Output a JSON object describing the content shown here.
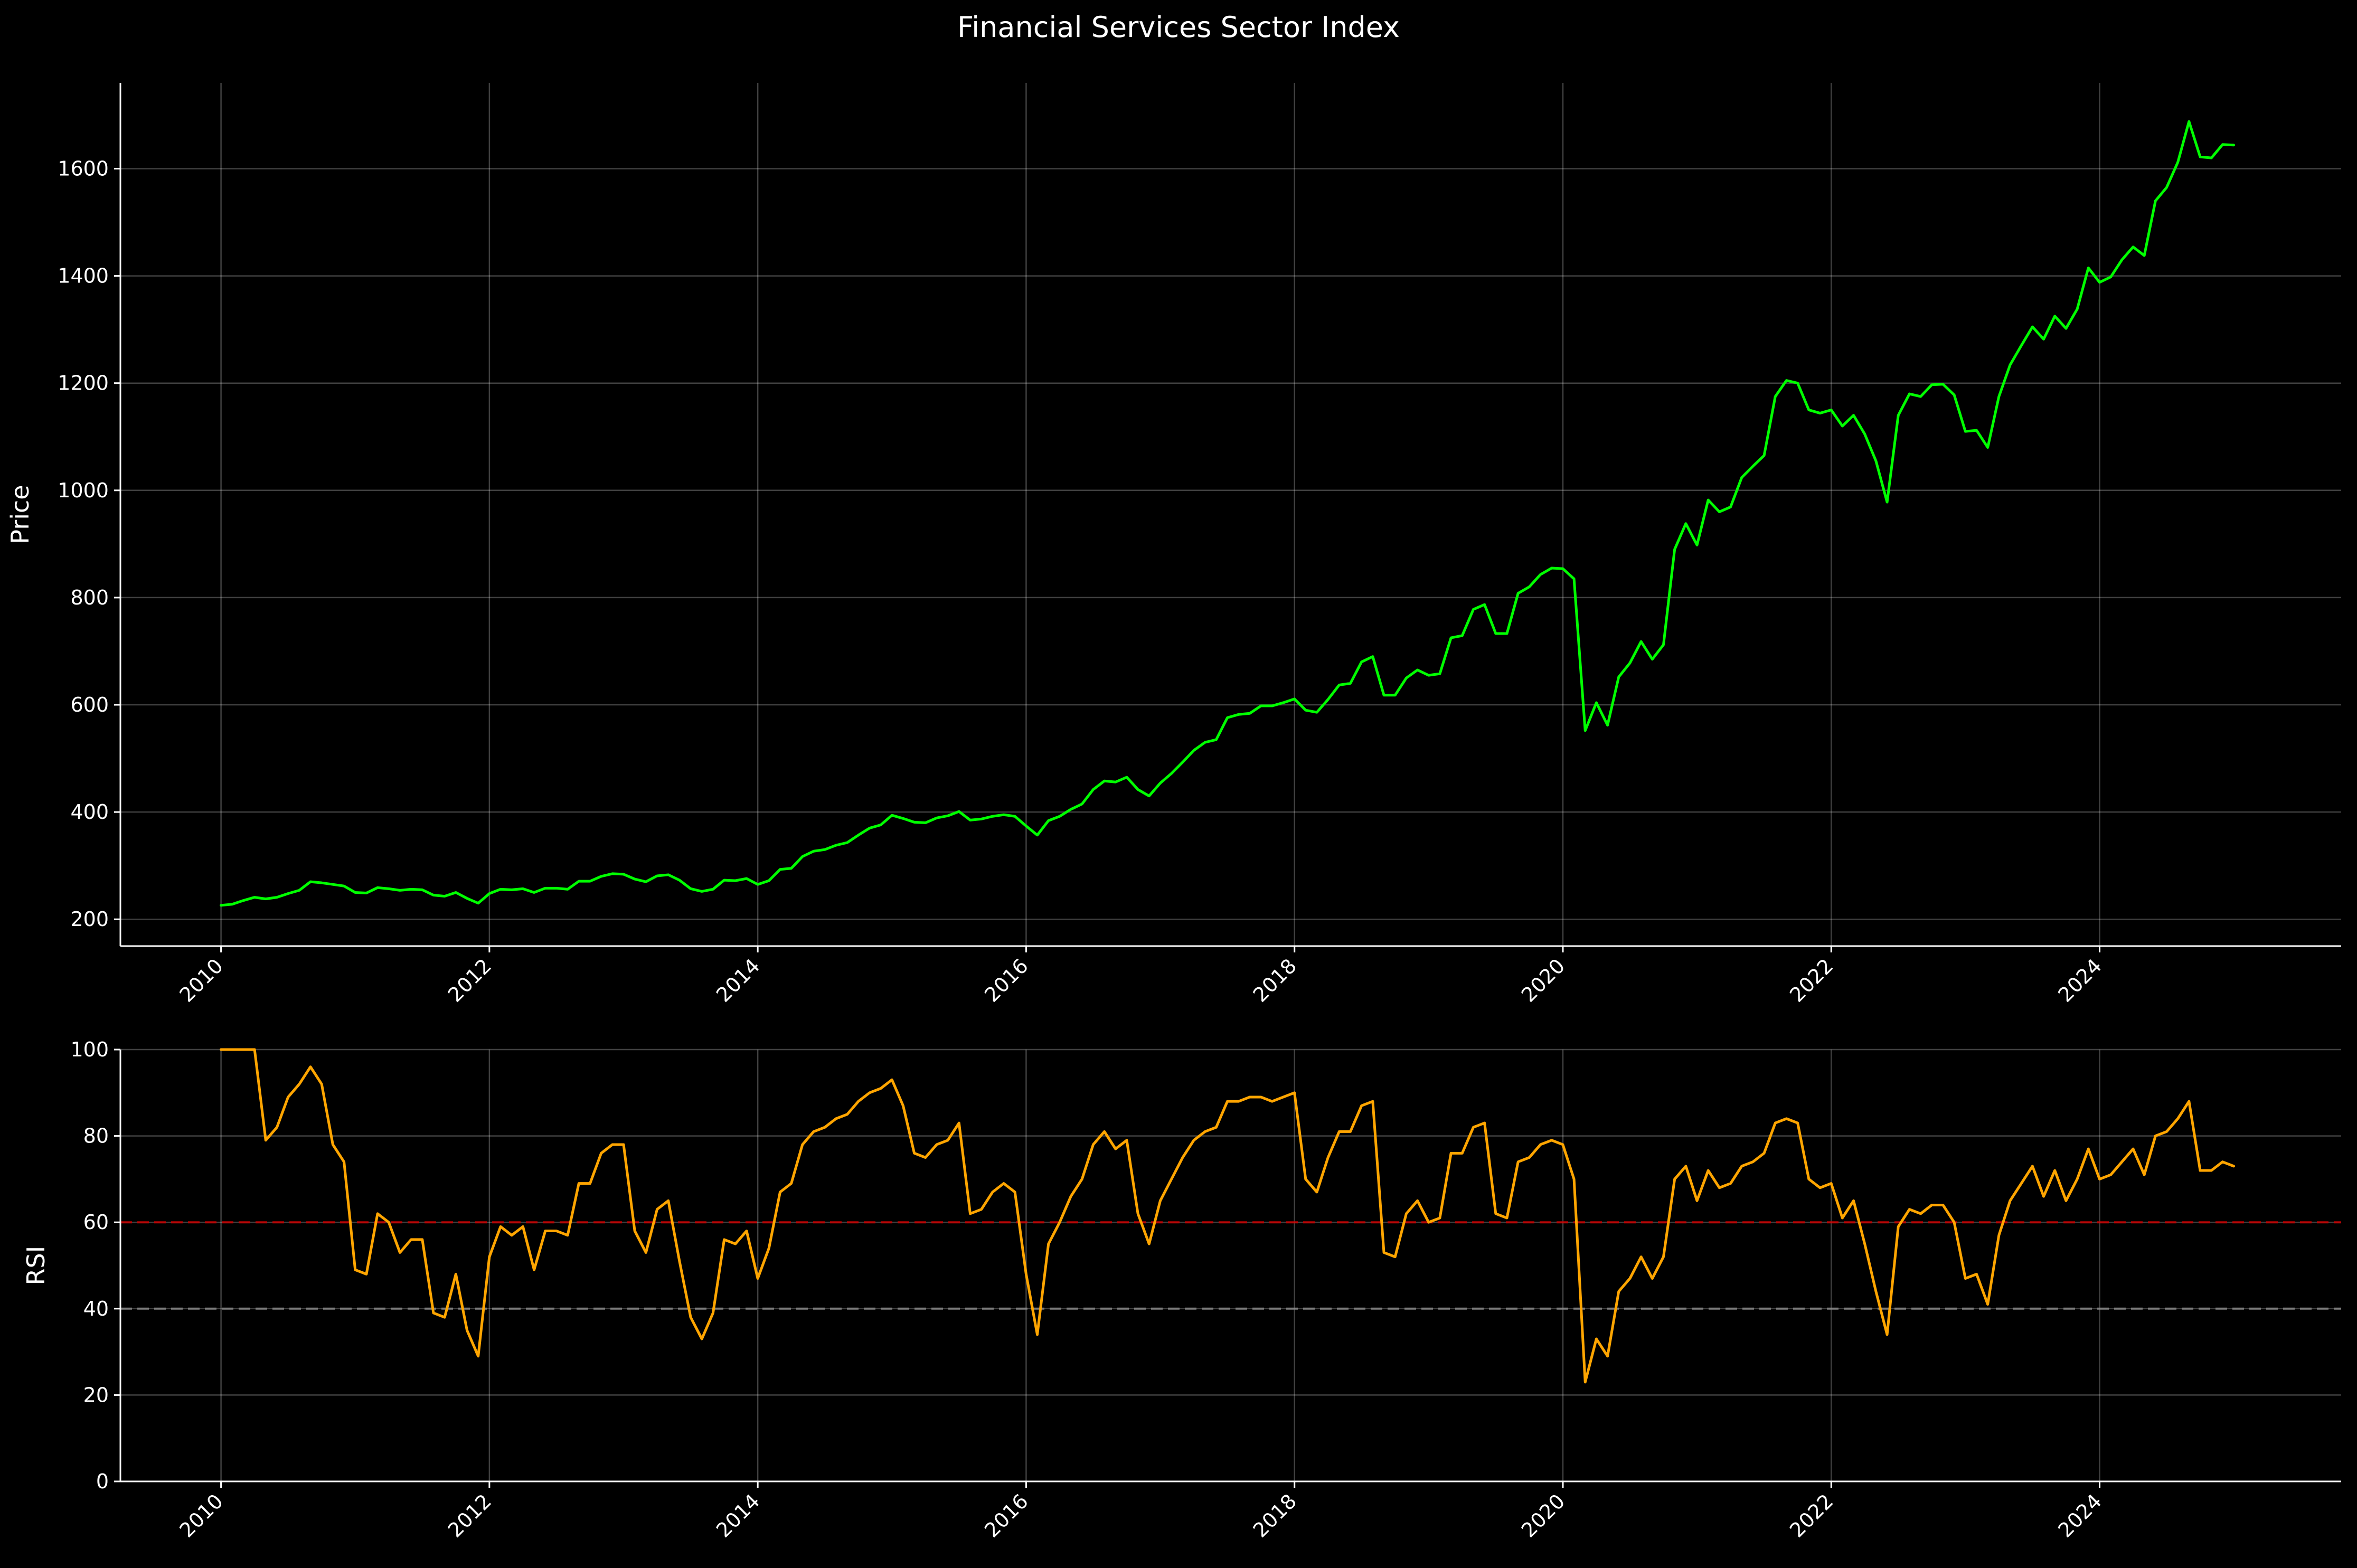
{
  "title": "Financial Services Sector Index",
  "colors": {
    "background": "#000000",
    "text": "#ffffff",
    "price_line": "#00ff00",
    "rsi_line": "#ffa500",
    "overbought_line": "#cc0000",
    "oversold_line": "#888888"
  },
  "chart_data": [
    {
      "type": "line",
      "title": "Financial Services Sector Index",
      "xlabel": "",
      "ylabel": "Price",
      "xlim": [
        2009.25,
        2025.8
      ],
      "ylim": [
        150,
        1760
      ],
      "x_ticks": [
        2010,
        2012,
        2014,
        2016,
        2018,
        2020,
        2022,
        2024
      ],
      "x_tick_labels": [
        "2010",
        "2012",
        "2014",
        "2016",
        "2018",
        "2020",
        "2022",
        "2024"
      ],
      "y_ticks": [
        200,
        400,
        600,
        800,
        1000,
        1200,
        1400,
        1600
      ],
      "y_tick_labels": [
        "200",
        "400",
        "600",
        "800",
        "1000",
        "1200",
        "1400",
        "1600"
      ],
      "grid": true,
      "series": [
        {
          "color": "#00ff00",
          "x_start": 2010.0,
          "x_step": 0.08333,
          "values": [
            226,
            228,
            235,
            241,
            238,
            241,
            248,
            254,
            270,
            268,
            265,
            262,
            250,
            249,
            259,
            257,
            254,
            256,
            255,
            245,
            243,
            250,
            239,
            230,
            248,
            256,
            255,
            257,
            250,
            258,
            258,
            256,
            271,
            271,
            280,
            285,
            284,
            275,
            270,
            281,
            283,
            273,
            257,
            252,
            256,
            273,
            272,
            276,
            265,
            272,
            293,
            295,
            317,
            327,
            330,
            338,
            343,
            357,
            370,
            376,
            394,
            388,
            381,
            380,
            389,
            393,
            401,
            385,
            387,
            392,
            395,
            392,
            374,
            357,
            384,
            392,
            405,
            415,
            442,
            458,
            456,
            465,
            442,
            430,
            454,
            472,
            493,
            515,
            530,
            535,
            576,
            582,
            584,
            598,
            598,
            604,
            611,
            590,
            586,
            610,
            637,
            640,
            680,
            690,
            618,
            618,
            650,
            665,
            655,
            658,
            725,
            729,
            778,
            787,
            733,
            733,
            808,
            820,
            843,
            855,
            854,
            835,
            552,
            604,
            562,
            652,
            678,
            718,
            685,
            712,
            890,
            938,
            898,
            982,
            960,
            969,
            1024,
            1045,
            1065,
            1175,
            1205,
            1200,
            1150,
            1144,
            1150,
            1120,
            1140,
            1105,
            1055,
            978,
            1140,
            1180,
            1175,
            1197,
            1198,
            1178,
            1110,
            1112,
            1080,
            1175,
            1234,
            1270,
            1305,
            1282,
            1325,
            1302,
            1338,
            1415,
            1388,
            1398,
            1430,
            1454,
            1438,
            1540,
            1565,
            1612,
            1688,
            1622,
            1620,
            1645,
            1644
          ]
        }
      ]
    },
    {
      "type": "line",
      "xlabel": "",
      "ylabel": "RSI",
      "xlim": [
        2009.25,
        2025.8
      ],
      "ylim": [
        0,
        100
      ],
      "x_ticks": [
        2010,
        2012,
        2014,
        2016,
        2018,
        2020,
        2022,
        2024
      ],
      "x_tick_labels": [
        "2010",
        "2012",
        "2014",
        "2016",
        "2018",
        "2020",
        "2022",
        "2024"
      ],
      "y_ticks": [
        0,
        20,
        40,
        60,
        80,
        100
      ],
      "y_tick_labels": [
        "0",
        "20",
        "40",
        "60",
        "80",
        "100"
      ],
      "grid": true,
      "reference_lines": [
        {
          "y": 60,
          "color": "#cc0000",
          "style": "dashed"
        },
        {
          "y": 40,
          "color": "#888888",
          "style": "dashed"
        }
      ],
      "series": [
        {
          "color": "#ffa500",
          "x_start": 2010.0,
          "x_step": 0.08333,
          "values": [
            100,
            100,
            100,
            100,
            79,
            82,
            89,
            92,
            96,
            92,
            78,
            74,
            49,
            48,
            62,
            60,
            53,
            56,
            56,
            39,
            38,
            48,
            35,
            29,
            52,
            59,
            57,
            59,
            49,
            58,
            58,
            57,
            69,
            69,
            76,
            78,
            78,
            58,
            53,
            63,
            65,
            51,
            38,
            33,
            39,
            56,
            55,
            58,
            47,
            54,
            67,
            69,
            78,
            81,
            82,
            84,
            85,
            88,
            90,
            91,
            93,
            87,
            76,
            75,
            78,
            79,
            83,
            62,
            63,
            67,
            69,
            67,
            48,
            34,
            55,
            60,
            66,
            70,
            78,
            81,
            77,
            79,
            62,
            55,
            65,
            70,
            75,
            79,
            81,
            82,
            88,
            88,
            89,
            89,
            88,
            89,
            90,
            70,
            67,
            75,
            81,
            81,
            87,
            88,
            53,
            52,
            62,
            65,
            60,
            61,
            76,
            76,
            82,
            83,
            62,
            61,
            74,
            75,
            78,
            79,
            78,
            70,
            23,
            33,
            29,
            44,
            47,
            52,
            47,
            52,
            70,
            73,
            65,
            72,
            68,
            69,
            73,
            74,
            76,
            83,
            84,
            83,
            70,
            68,
            69,
            61,
            65,
            55,
            44,
            34,
            59,
            63,
            62,
            64,
            64,
            60,
            47,
            48,
            41,
            57,
            65,
            69,
            73,
            66,
            72,
            65,
            70,
            77,
            70,
            71,
            74,
            77,
            71,
            80,
            81,
            84,
            88,
            72,
            72,
            74,
            73
          ]
        }
      ]
    }
  ]
}
